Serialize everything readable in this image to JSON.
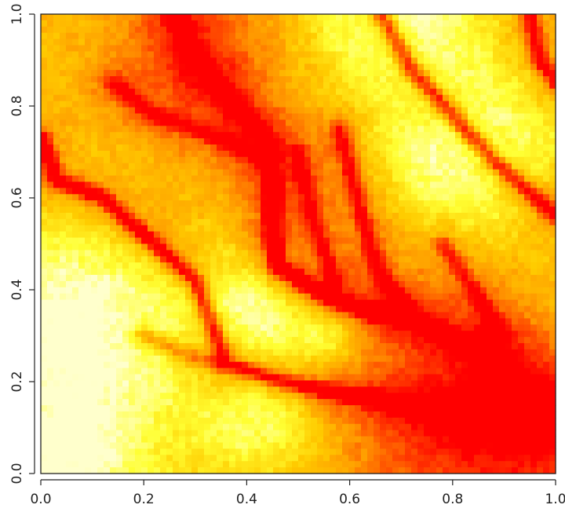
{
  "chart_data": {
    "type": "heatmap",
    "title": "",
    "xlabel": "",
    "ylabel": "",
    "xlim": [
      0,
      1
    ],
    "ylim": [
      0,
      1
    ],
    "x_ticks": [
      0.0,
      0.2,
      0.4,
      0.6,
      0.8,
      1.0
    ],
    "x_tick_labels": [
      "0.0",
      "0.2",
      "0.4",
      "0.6",
      "0.8",
      "1.0"
    ],
    "y_ticks": [
      0.0,
      0.2,
      0.4,
      0.6,
      0.8,
      1.0
    ],
    "y_tick_labels": [
      "0.0",
      "0.2",
      "0.4",
      "0.6",
      "0.8",
      "1.0"
    ],
    "legend": "none",
    "grid": false,
    "colormap": [
      "#ff0000",
      "#ff4d00",
      "#ff9900",
      "#ffcc00",
      "#ffff33",
      "#ffffcc"
    ],
    "low_value_color": "#ff0000",
    "high_value_color": "#ffffcc",
    "channels": [
      {
        "points": [
          [
            0.26,
            1.0
          ],
          [
            0.3,
            0.9
          ],
          [
            0.38,
            0.8
          ],
          [
            0.44,
            0.72
          ],
          [
            0.45,
            0.62
          ],
          [
            0.45,
            0.52
          ],
          [
            0.46,
            0.45
          ],
          [
            0.55,
            0.39
          ],
          [
            0.64,
            0.35
          ],
          [
            0.72,
            0.34
          ],
          [
            0.78,
            0.3
          ],
          [
            0.86,
            0.26
          ],
          [
            0.92,
            0.2
          ],
          [
            1.0,
            0.15
          ]
        ],
        "depth": 1.0
      },
      {
        "points": [
          [
            0.0,
            0.73
          ],
          [
            0.03,
            0.64
          ],
          [
            0.12,
            0.6
          ],
          [
            0.18,
            0.54
          ],
          [
            0.24,
            0.48
          ],
          [
            0.3,
            0.42
          ],
          [
            0.33,
            0.33
          ],
          [
            0.36,
            0.24
          ],
          [
            0.44,
            0.21
          ],
          [
            0.55,
            0.18
          ],
          [
            0.66,
            0.16
          ],
          [
            0.78,
            0.14
          ],
          [
            0.88,
            0.12
          ],
          [
            1.0,
            0.1
          ]
        ],
        "depth": 0.85
      },
      {
        "points": [
          [
            0.66,
            1.0
          ],
          [
            0.72,
            0.88
          ],
          [
            0.8,
            0.78
          ],
          [
            0.88,
            0.68
          ],
          [
            0.96,
            0.6
          ],
          [
            1.0,
            0.56
          ]
        ],
        "depth": 0.85
      },
      {
        "points": [
          [
            0.95,
            1.0
          ],
          [
            0.97,
            0.9
          ],
          [
            1.0,
            0.85
          ]
        ],
        "depth": 0.7
      },
      {
        "points": [
          [
            0.58,
            0.75
          ],
          [
            0.62,
            0.58
          ],
          [
            0.65,
            0.46
          ],
          [
            0.7,
            0.36
          ]
        ],
        "depth": 0.6
      },
      {
        "points": [
          [
            0.5,
            0.7
          ],
          [
            0.53,
            0.55
          ],
          [
            0.57,
            0.42
          ]
        ],
        "depth": 0.5
      },
      {
        "points": [
          [
            0.14,
            0.85
          ],
          [
            0.22,
            0.78
          ],
          [
            0.32,
            0.74
          ],
          [
            0.4,
            0.7
          ]
        ],
        "depth": 0.5
      },
      {
        "points": [
          [
            0.78,
            0.5
          ],
          [
            0.84,
            0.4
          ],
          [
            0.9,
            0.3
          ]
        ],
        "depth": 0.5
      },
      {
        "points": [
          [
            0.2,
            0.3
          ],
          [
            0.28,
            0.26
          ],
          [
            0.34,
            0.24
          ]
        ],
        "depth": 0.45
      }
    ],
    "uplands": [
      {
        "center": [
          0.07,
          0.3
        ],
        "radius": 0.16,
        "height": 1.0
      },
      {
        "center": [
          0.04,
          0.02
        ],
        "radius": 0.1,
        "height": 0.9
      },
      {
        "center": [
          0.4,
          0.36
        ],
        "radius": 0.09,
        "height": 0.95
      },
      {
        "center": [
          0.68,
          0.98
        ],
        "radius": 0.11,
        "height": 0.95
      },
      {
        "center": [
          0.82,
          0.7
        ],
        "radius": 0.12,
        "height": 0.95
      },
      {
        "center": [
          0.44,
          0.12
        ],
        "radius": 0.08,
        "height": 0.7
      },
      {
        "center": [
          0.56,
          0.3
        ],
        "radius": 0.05,
        "height": 0.7
      }
    ],
    "lowlands": [
      {
        "center": [
          0.9,
          0.1
        ],
        "radius": 0.18,
        "depth": 0.9
      },
      {
        "center": [
          0.3,
          0.9
        ],
        "radius": 0.12,
        "depth": 0.45
      }
    ]
  }
}
